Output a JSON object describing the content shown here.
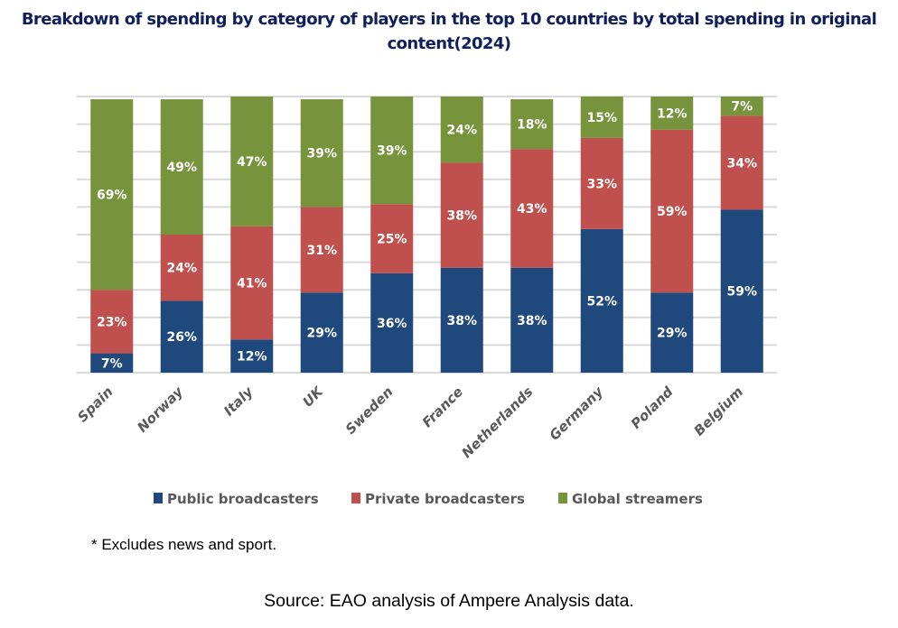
{
  "title": "Breakdown of spending by category of players in the top 10 countries by total spending in original content(2024)",
  "footnote": "* Excludes news and sport.",
  "source": "Source: EAO analysis of Ampere Analysis data.",
  "chart_data": {
    "type": "bar",
    "stacked": true,
    "title": "Breakdown of spending by category of players in the top 10 countries by total spending in original content(2024)",
    "xlabel": "",
    "ylabel": "",
    "ylim": [
      0,
      100
    ],
    "grid": true,
    "gridlines": 10,
    "legend_position": "bottom",
    "categories": [
      "Spain",
      "Norway",
      "Italy",
      "UK",
      "Sweden",
      "France",
      "Netherlands",
      "Germany",
      "Poland",
      "Belgium"
    ],
    "series": [
      {
        "name": "Public broadcasters",
        "color": "#1f497d",
        "values": [
          7,
          26,
          12,
          29,
          36,
          38,
          38,
          52,
          29,
          59
        ]
      },
      {
        "name": "Private broadcasters",
        "color": "#c0504d",
        "values": [
          23,
          24,
          41,
          31,
          25,
          38,
          43,
          33,
          59,
          34
        ]
      },
      {
        "name": "Global streamers",
        "color": "#77933c",
        "values": [
          69,
          49,
          47,
          39,
          39,
          24,
          18,
          15,
          12,
          7
        ]
      }
    ],
    "data_label_suffix": "%"
  }
}
